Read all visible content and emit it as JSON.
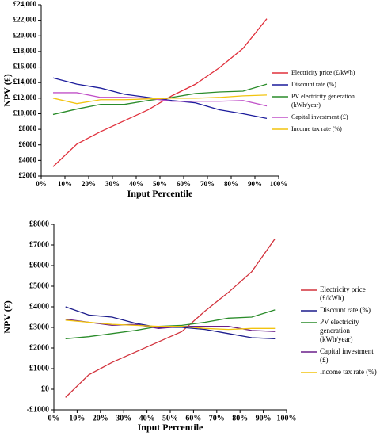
{
  "chart_data": [
    {
      "type": "line",
      "x_label": "Input Percentile",
      "y_label": "NPV (£)",
      "x": [
        5,
        15,
        25,
        35,
        45,
        55,
        65,
        75,
        85,
        95
      ],
      "xlim": [
        0,
        100
      ],
      "xticks": [
        {
          "value": 0,
          "label": "0%"
        },
        {
          "value": 10,
          "label": "10%"
        },
        {
          "value": 20,
          "label": "20%"
        },
        {
          "value": 30,
          "label": "30%"
        },
        {
          "value": 40,
          "label": "40%"
        },
        {
          "value": 50,
          "label": "50%"
        },
        {
          "value": 60,
          "label": "60%"
        },
        {
          "value": 70,
          "label": "70%"
        },
        {
          "value": 80,
          "label": "80%"
        },
        {
          "value": 90,
          "label": "90%"
        },
        {
          "value": 100,
          "label": "100%"
        }
      ],
      "ylim": [
        2000,
        24000
      ],
      "yticks": [
        {
          "value": 2000,
          "label": "£2000"
        },
        {
          "value": 4000,
          "label": "£4000"
        },
        {
          "value": 6000,
          "label": "£6000"
        },
        {
          "value": 8000,
          "label": "£8000"
        },
        {
          "value": 10000,
          "label": "£10,000"
        },
        {
          "value": 12000,
          "label": "£12,000"
        },
        {
          "value": 14000,
          "label": "£14,000"
        },
        {
          "value": 16000,
          "label": "£16,000"
        },
        {
          "value": 18000,
          "label": "£18,000"
        },
        {
          "value": 20000,
          "label": "£20,000"
        },
        {
          "value": 22000,
          "label": "£22,000"
        },
        {
          "value": 24000,
          "label": "£24,000"
        }
      ],
      "legend": "right",
      "series": [
        {
          "name": "Electricity price (£/kWh)",
          "color": "#e0303c",
          "values": [
            3200,
            6100,
            7700,
            9100,
            10500,
            12300,
            13800,
            15900,
            18400,
            22200
          ]
        },
        {
          "name": "Discount rate (%)",
          "color": "#1c1c9c",
          "values": [
            14600,
            13800,
            13300,
            12500,
            12100,
            11700,
            11400,
            10500,
            10000,
            9400
          ]
        },
        {
          "name": "PV electricity generation (kWh/year)",
          "color": "#2a8c2a",
          "values": [
            9900,
            10600,
            11200,
            11200,
            11700,
            12100,
            12600,
            12800,
            12900,
            13800
          ]
        },
        {
          "name": "Capital investment (£)",
          "color": "#c050c8",
          "values": [
            12700,
            12700,
            12100,
            12100,
            12000,
            11600,
            11600,
            11600,
            11700,
            11000
          ]
        },
        {
          "name": "Income tax rate (%)",
          "color": "#f2c40f",
          "values": [
            12000,
            11300,
            11800,
            11800,
            11900,
            12000,
            12000,
            12100,
            12300,
            12400
          ]
        }
      ]
    },
    {
      "type": "line",
      "x_label": "Input Percentile",
      "y_label": "NPV (£)",
      "x": [
        5,
        15,
        25,
        35,
        45,
        55,
        65,
        75,
        85,
        95
      ],
      "xlim": [
        0,
        100
      ],
      "xticks": [
        {
          "value": 0,
          "label": "0%"
        },
        {
          "value": 10,
          "label": "10%"
        },
        {
          "value": 20,
          "label": "20%"
        },
        {
          "value": 30,
          "label": "30%"
        },
        {
          "value": 40,
          "label": "40%"
        },
        {
          "value": 50,
          "label": "50%"
        },
        {
          "value": 60,
          "label": "60%"
        },
        {
          "value": 70,
          "label": "70%"
        },
        {
          "value": 80,
          "label": "80%"
        },
        {
          "value": 90,
          "label": "90%"
        },
        {
          "value": 100,
          "label": "100%"
        }
      ],
      "ylim": [
        -1000,
        8000
      ],
      "yticks": [
        {
          "value": -1000,
          "label": "-£1000"
        },
        {
          "value": 0,
          "label": "£0"
        },
        {
          "value": 1000,
          "label": "£1000"
        },
        {
          "value": 2000,
          "label": "£2000"
        },
        {
          "value": 3000,
          "label": "£3000"
        },
        {
          "value": 4000,
          "label": "£4000"
        },
        {
          "value": 5000,
          "label": "£5000"
        },
        {
          "value": 6000,
          "label": "£6000"
        },
        {
          "value": 7000,
          "label": "£7000"
        },
        {
          "value": 8000,
          "label": "£8000"
        }
      ],
      "legend": "right",
      "series": [
        {
          "name": "Electricity price (£/kWh)",
          "color": "#d2323c",
          "values": [
            -400,
            700,
            1300,
            1800,
            2300,
            2800,
            3800,
            4700,
            5700,
            7300
          ]
        },
        {
          "name": "Discount rate (%)",
          "color": "#1c1c8c",
          "values": [
            4000,
            3600,
            3500,
            3200,
            3000,
            3000,
            2900,
            2700,
            2500,
            2450
          ]
        },
        {
          "name": "PV electricity generation (kWh/year)",
          "color": "#2a8c2a",
          "values": [
            2450,
            2550,
            2700,
            2850,
            3050,
            3100,
            3250,
            3450,
            3500,
            3850
          ]
        },
        {
          "name": "Capital investment (£)",
          "color": "#6a1f8a",
          "values": [
            3400,
            3250,
            3100,
            3150,
            2950,
            3050,
            3050,
            3050,
            2850,
            2800
          ]
        },
        {
          "name": "Income tax rate (%)",
          "color": "#f2c40f",
          "values": [
            3350,
            3250,
            3150,
            3100,
            3050,
            3050,
            2950,
            2900,
            2950,
            2950
          ]
        }
      ]
    }
  ]
}
